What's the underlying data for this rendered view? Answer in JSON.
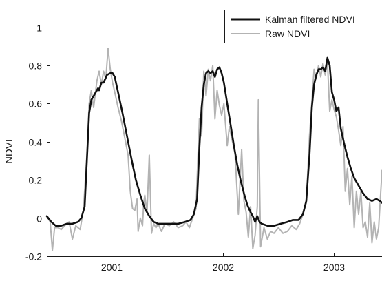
{
  "chart_data": {
    "type": "line",
    "title": "",
    "xlabel": "",
    "ylabel": "NDVI",
    "xlim": [
      2000.42,
      2003.43
    ],
    "ylim": [
      -0.2,
      1.1
    ],
    "y_ticks": [
      -0.2,
      0,
      0.2,
      0.4,
      0.6,
      0.8,
      1
    ],
    "y_tick_labels": [
      "-0.2",
      "0",
      "0.2",
      "0.4",
      "0.6",
      "0.8",
      "1"
    ],
    "x_tick_positions": [
      2001.0,
      2002.0,
      2003.0
    ],
    "x_tick_labels": [
      "2001",
      "2002",
      "2003"
    ],
    "grid": false,
    "legend": "top-right",
    "series": [
      {
        "name": "Raw NDVI",
        "color": "#b3b3b3",
        "points": [
          [
            2000.42,
            0.01
          ],
          [
            2000.45,
            -0.02
          ],
          [
            2000.47,
            -0.17
          ],
          [
            2000.49,
            -0.05
          ],
          [
            2000.52,
            -0.05
          ],
          [
            2000.55,
            -0.06
          ],
          [
            2000.58,
            -0.04
          ],
          [
            2000.62,
            -0.02
          ],
          [
            2000.65,
            -0.11
          ],
          [
            2000.68,
            -0.04
          ],
          [
            2000.72,
            -0.06
          ],
          [
            2000.75,
            0.05
          ],
          [
            2000.78,
            0.33
          ],
          [
            2000.8,
            0.6
          ],
          [
            2000.82,
            0.67
          ],
          [
            2000.84,
            0.58
          ],
          [
            2000.87,
            0.72
          ],
          [
            2000.89,
            0.77
          ],
          [
            2000.91,
            0.7
          ],
          [
            2000.93,
            0.77
          ],
          [
            2000.95,
            0.73
          ],
          [
            2000.97,
            0.89
          ],
          [
            2000.99,
            0.78
          ],
          [
            2001.01,
            0.71
          ],
          [
            2001.03,
            0.66
          ],
          [
            2001.06,
            0.58
          ],
          [
            2001.09,
            0.51
          ],
          [
            2001.12,
            0.42
          ],
          [
            2001.15,
            0.33
          ],
          [
            2001.17,
            0.14
          ],
          [
            2001.19,
            0.05
          ],
          [
            2001.21,
            0.04
          ],
          [
            2001.23,
            0.1
          ],
          [
            2001.24,
            -0.07
          ],
          [
            2001.26,
            0.0
          ],
          [
            2001.28,
            -0.04
          ],
          [
            2001.29,
            0.08
          ],
          [
            2001.3,
            0.12
          ],
          [
            2001.32,
            0.03
          ],
          [
            2001.34,
            0.33
          ],
          [
            2001.36,
            -0.08
          ],
          [
            2001.38,
            -0.03
          ],
          [
            2001.4,
            -0.05
          ],
          [
            2001.42,
            -0.03
          ],
          [
            2001.45,
            -0.07
          ],
          [
            2001.48,
            -0.03
          ],
          [
            2001.52,
            -0.04
          ],
          [
            2001.56,
            -0.02
          ],
          [
            2001.6,
            -0.05
          ],
          [
            2001.64,
            -0.04
          ],
          [
            2001.67,
            -0.02
          ],
          [
            2001.7,
            -0.05
          ],
          [
            2001.73,
            0.0
          ],
          [
            2001.76,
            0.05
          ],
          [
            2001.79,
            0.52
          ],
          [
            2001.81,
            0.43
          ],
          [
            2001.83,
            0.77
          ],
          [
            2001.85,
            0.64
          ],
          [
            2001.87,
            0.78
          ],
          [
            2001.89,
            0.72
          ],
          [
            2001.91,
            0.8
          ],
          [
            2001.93,
            0.52
          ],
          [
            2001.95,
            0.67
          ],
          [
            2001.97,
            0.59
          ],
          [
            2001.99,
            0.54
          ],
          [
            2002.01,
            0.6
          ],
          [
            2002.04,
            0.38
          ],
          [
            2002.06,
            0.48
          ],
          [
            2002.08,
            0.42
          ],
          [
            2002.11,
            0.34
          ],
          [
            2002.14,
            0.02
          ],
          [
            2002.17,
            0.36
          ],
          [
            2002.19,
            0.09
          ],
          [
            2002.21,
            0.03
          ],
          [
            2002.23,
            -0.1
          ],
          [
            2002.25,
            0.06
          ],
          [
            2002.27,
            -0.16
          ],
          [
            2002.29,
            -0.09
          ],
          [
            2002.31,
            0.06
          ],
          [
            2002.32,
            0.62
          ],
          [
            2002.34,
            -0.15
          ],
          [
            2002.37,
            -0.05
          ],
          [
            2002.4,
            -0.11
          ],
          [
            2002.43,
            -0.07
          ],
          [
            2002.46,
            -0.08
          ],
          [
            2002.5,
            -0.05
          ],
          [
            2002.54,
            -0.08
          ],
          [
            2002.58,
            -0.07
          ],
          [
            2002.62,
            -0.04
          ],
          [
            2002.66,
            -0.06
          ],
          [
            2002.69,
            -0.03
          ],
          [
            2002.72,
            0.02
          ],
          [
            2002.75,
            0.08
          ],
          [
            2002.78,
            0.44
          ],
          [
            2002.8,
            0.61
          ],
          [
            2002.82,
            0.78
          ],
          [
            2002.84,
            0.73
          ],
          [
            2002.86,
            0.8
          ],
          [
            2002.88,
            0.74
          ],
          [
            2002.9,
            0.81
          ],
          [
            2002.92,
            0.75
          ],
          [
            2002.94,
            0.82
          ],
          [
            2002.96,
            0.56
          ],
          [
            2002.98,
            0.62
          ],
          [
            2003.0,
            0.57
          ],
          [
            2003.02,
            0.53
          ],
          [
            2003.04,
            0.46
          ],
          [
            2003.06,
            0.38
          ],
          [
            2003.08,
            0.48
          ],
          [
            2003.1,
            0.14
          ],
          [
            2003.12,
            0.26
          ],
          [
            2003.14,
            0.07
          ],
          [
            2003.16,
            0.22
          ],
          [
            2003.18,
            -0.05
          ],
          [
            2003.2,
            0.14
          ],
          [
            2003.22,
            0.02
          ],
          [
            2003.24,
            0.14
          ],
          [
            2003.26,
            -0.05
          ],
          [
            2003.28,
            -0.02
          ],
          [
            2003.3,
            -0.1
          ],
          [
            2003.32,
            0.08
          ],
          [
            2003.34,
            -0.13
          ],
          [
            2003.36,
            -0.02
          ],
          [
            2003.38,
            -0.11
          ],
          [
            2003.4,
            -0.05
          ],
          [
            2003.43,
            0.25
          ]
        ]
      },
      {
        "name": "Kalman filtered NDVI",
        "color": "#111111",
        "points": [
          [
            2000.42,
            0.01
          ],
          [
            2000.46,
            -0.02
          ],
          [
            2000.5,
            -0.04
          ],
          [
            2000.55,
            -0.04
          ],
          [
            2000.6,
            -0.03
          ],
          [
            2000.65,
            -0.03
          ],
          [
            2000.7,
            -0.02
          ],
          [
            2000.73,
            0.0
          ],
          [
            2000.76,
            0.06
          ],
          [
            2000.78,
            0.3
          ],
          [
            2000.8,
            0.55
          ],
          [
            2000.82,
            0.62
          ],
          [
            2000.84,
            0.64
          ],
          [
            2000.86,
            0.66
          ],
          [
            2000.88,
            0.68
          ],
          [
            2000.89,
            0.67
          ],
          [
            2000.91,
            0.71
          ],
          [
            2000.93,
            0.71
          ],
          [
            2000.96,
            0.75
          ],
          [
            2000.99,
            0.76
          ],
          [
            2001.01,
            0.76
          ],
          [
            2001.03,
            0.74
          ],
          [
            2001.06,
            0.66
          ],
          [
            2001.1,
            0.55
          ],
          [
            2001.14,
            0.43
          ],
          [
            2001.18,
            0.31
          ],
          [
            2001.22,
            0.2
          ],
          [
            2001.26,
            0.12
          ],
          [
            2001.3,
            0.05
          ],
          [
            2001.34,
            0.01
          ],
          [
            2001.38,
            -0.02
          ],
          [
            2001.42,
            -0.03
          ],
          [
            2001.48,
            -0.03
          ],
          [
            2001.54,
            -0.03
          ],
          [
            2001.6,
            -0.03
          ],
          [
            2001.66,
            -0.02
          ],
          [
            2001.71,
            -0.01
          ],
          [
            2001.74,
            0.02
          ],
          [
            2001.77,
            0.1
          ],
          [
            2001.79,
            0.37
          ],
          [
            2001.81,
            0.58
          ],
          [
            2001.83,
            0.7
          ],
          [
            2001.85,
            0.76
          ],
          [
            2001.87,
            0.77
          ],
          [
            2001.89,
            0.76
          ],
          [
            2001.91,
            0.77
          ],
          [
            2001.93,
            0.74
          ],
          [
            2001.95,
            0.78
          ],
          [
            2001.97,
            0.79
          ],
          [
            2001.99,
            0.76
          ],
          [
            2002.01,
            0.71
          ],
          [
            2002.04,
            0.6
          ],
          [
            2002.07,
            0.49
          ],
          [
            2002.1,
            0.38
          ],
          [
            2002.13,
            0.28
          ],
          [
            2002.16,
            0.2
          ],
          [
            2002.19,
            0.13
          ],
          [
            2002.22,
            0.07
          ],
          [
            2002.25,
            0.03
          ],
          [
            2002.27,
            0.01
          ],
          [
            2002.29,
            -0.02
          ],
          [
            2002.31,
            0.01
          ],
          [
            2002.33,
            -0.02
          ],
          [
            2002.35,
            -0.03
          ],
          [
            2002.4,
            -0.04
          ],
          [
            2002.46,
            -0.04
          ],
          [
            2002.52,
            -0.03
          ],
          [
            2002.58,
            -0.02
          ],
          [
            2002.63,
            -0.01
          ],
          [
            2002.68,
            -0.01
          ],
          [
            2002.72,
            0.02
          ],
          [
            2002.75,
            0.09
          ],
          [
            2002.78,
            0.34
          ],
          [
            2002.8,
            0.58
          ],
          [
            2002.82,
            0.7
          ],
          [
            2002.84,
            0.75
          ],
          [
            2002.86,
            0.78
          ],
          [
            2002.88,
            0.78
          ],
          [
            2002.9,
            0.79
          ],
          [
            2002.92,
            0.77
          ],
          [
            2002.94,
            0.84
          ],
          [
            2002.96,
            0.8
          ],
          [
            2002.98,
            0.66
          ],
          [
            2003.0,
            0.62
          ],
          [
            2003.02,
            0.56
          ],
          [
            2003.04,
            0.58
          ],
          [
            2003.06,
            0.47
          ],
          [
            2003.09,
            0.39
          ],
          [
            2003.12,
            0.32
          ],
          [
            2003.15,
            0.26
          ],
          [
            2003.18,
            0.21
          ],
          [
            2003.22,
            0.17
          ],
          [
            2003.26,
            0.13
          ],
          [
            2003.3,
            0.1
          ],
          [
            2003.34,
            0.09
          ],
          [
            2003.38,
            0.1
          ],
          [
            2003.41,
            0.09
          ],
          [
            2003.43,
            0.08
          ]
        ]
      }
    ]
  }
}
